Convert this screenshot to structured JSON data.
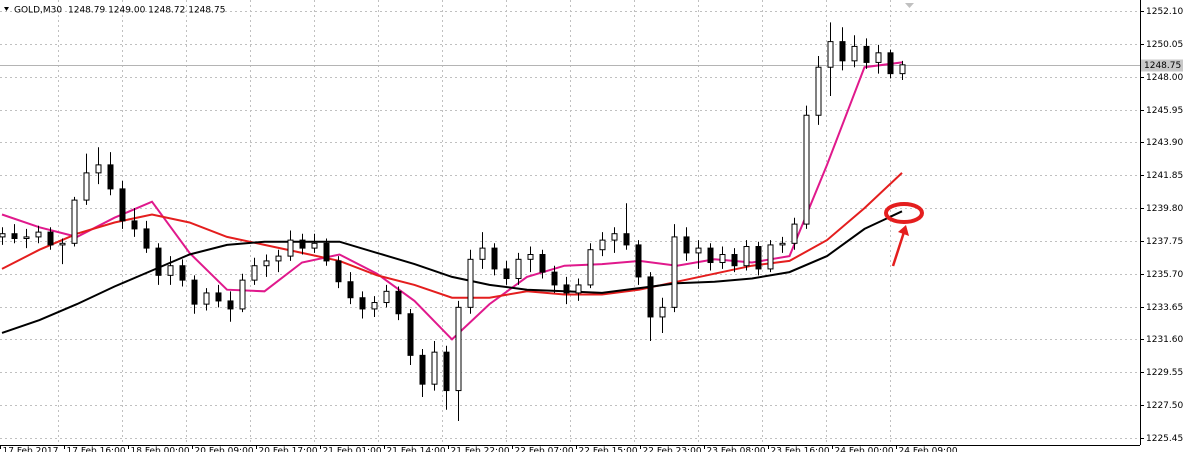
{
  "chart_data": {
    "type": "candlestick",
    "title": "GOLD,M30",
    "quote": "1248.79 1249.00 1248.72 1248.75",
    "ylim": [
      1225.0,
      1252.8
    ],
    "yticks": [
      {
        "value": 1252.1,
        "label": "1252.10"
      },
      {
        "value": 1250.05,
        "label": "1250.05"
      },
      {
        "value": 1248.0,
        "label": "1248.00"
      },
      {
        "value": 1245.95,
        "label": "1245.95"
      },
      {
        "value": 1243.9,
        "label": "1243.90"
      },
      {
        "value": 1241.85,
        "label": "1241.85"
      },
      {
        "value": 1239.8,
        "label": "1239.80"
      },
      {
        "value": 1237.75,
        "label": "1237.75"
      },
      {
        "value": 1235.7,
        "label": "1235.70"
      },
      {
        "value": 1233.65,
        "label": "1233.65"
      },
      {
        "value": 1231.6,
        "label": "1231.60"
      },
      {
        "value": 1229.55,
        "label": "1229.55"
      },
      {
        "value": 1227.5,
        "label": "1227.50"
      },
      {
        "value": 1225.45,
        "label": "1225.45"
      }
    ],
    "current_price": {
      "value": 1248.75,
      "label": "1248.75"
    },
    "x_labels": [
      "17 Feb 2017",
      "17 Feb 16:00",
      "18 Feb 00:00",
      "20 Feb 09:00",
      "20 Feb 17:00",
      "21 Feb 01:00",
      "21 Feb 14:00",
      "21 Feb 22:00",
      "22 Feb 07:00",
      "22 Feb 15:00",
      "22 Feb 23:00",
      "23 Feb 08:00",
      "23 Feb 16:00",
      "24 Feb 00:00",
      "24 Feb 09:00"
    ],
    "grid": true,
    "candles": [
      [
        1238.0,
        1238.6,
        1237.5,
        1238.2
      ],
      [
        1238.2,
        1238.8,
        1237.6,
        1237.9
      ],
      [
        1237.9,
        1238.5,
        1237.3,
        1238.0
      ],
      [
        1238.0,
        1238.7,
        1237.6,
        1238.3
      ],
      [
        1238.3,
        1238.6,
        1237.2,
        1237.5
      ],
      [
        1237.5,
        1237.9,
        1236.3,
        1237.6
      ],
      [
        1237.6,
        1240.5,
        1237.4,
        1240.3
      ],
      [
        1240.3,
        1243.2,
        1240.0,
        1242.0
      ],
      [
        1242.0,
        1243.6,
        1241.3,
        1242.5
      ],
      [
        1242.5,
        1243.3,
        1240.6,
        1241.0
      ],
      [
        1241.0,
        1241.5,
        1238.5,
        1239.0
      ],
      [
        1239.0,
        1239.8,
        1238.0,
        1238.5
      ],
      [
        1238.5,
        1239.0,
        1237.0,
        1237.3
      ],
      [
        1237.3,
        1237.6,
        1235.0,
        1235.6
      ],
      [
        1235.6,
        1236.8,
        1235.0,
        1236.2
      ],
      [
        1236.2,
        1236.6,
        1234.9,
        1235.3
      ],
      [
        1235.3,
        1235.6,
        1233.2,
        1233.8
      ],
      [
        1233.8,
        1234.8,
        1233.4,
        1234.5
      ],
      [
        1234.5,
        1235.0,
        1233.6,
        1234.0
      ],
      [
        1234.0,
        1234.6,
        1232.7,
        1233.5
      ],
      [
        1233.5,
        1235.7,
        1233.3,
        1235.3
      ],
      [
        1235.3,
        1236.7,
        1235.0,
        1236.2
      ],
      [
        1236.2,
        1236.9,
        1235.5,
        1236.5
      ],
      [
        1236.5,
        1237.2,
        1235.8,
        1236.8
      ],
      [
        1236.8,
        1238.4,
        1236.5,
        1237.8
      ],
      [
        1237.8,
        1238.2,
        1236.9,
        1237.3
      ],
      [
        1237.3,
        1238.2,
        1237.0,
        1237.6
      ],
      [
        1237.6,
        1237.9,
        1236.2,
        1236.5
      ],
      [
        1236.5,
        1236.8,
        1234.8,
        1235.2
      ],
      [
        1235.2,
        1235.8,
        1233.8,
        1234.2
      ],
      [
        1234.2,
        1234.6,
        1232.9,
        1233.5
      ],
      [
        1233.5,
        1234.3,
        1233.0,
        1233.9
      ],
      [
        1233.9,
        1235.0,
        1233.6,
        1234.6
      ],
      [
        1234.6,
        1234.9,
        1232.8,
        1233.2
      ],
      [
        1233.2,
        1233.5,
        1230.0,
        1230.6
      ],
      [
        1230.6,
        1231.0,
        1228.0,
        1228.8
      ],
      [
        1228.8,
        1231.5,
        1228.4,
        1230.8
      ],
      [
        1230.8,
        1231.2,
        1227.2,
        1228.4
      ],
      [
        1228.4,
        1234.0,
        1226.5,
        1233.6
      ],
      [
        1233.6,
        1237.2,
        1233.2,
        1236.6
      ],
      [
        1236.6,
        1238.3,
        1236.0,
        1237.3
      ],
      [
        1237.3,
        1237.6,
        1235.6,
        1236.0
      ],
      [
        1236.0,
        1236.5,
        1235.0,
        1235.4
      ],
      [
        1235.4,
        1237.0,
        1235.0,
        1236.6
      ],
      [
        1236.6,
        1237.4,
        1235.8,
        1236.9
      ],
      [
        1236.9,
        1237.2,
        1235.4,
        1235.8
      ],
      [
        1235.8,
        1236.2,
        1234.5,
        1235.0
      ],
      [
        1235.0,
        1235.5,
        1233.8,
        1234.5
      ],
      [
        1234.5,
        1235.4,
        1234.0,
        1235.0
      ],
      [
        1235.0,
        1237.6,
        1234.8,
        1237.2
      ],
      [
        1237.2,
        1238.3,
        1236.8,
        1237.8
      ],
      [
        1237.8,
        1238.6,
        1237.0,
        1238.2
      ],
      [
        1238.2,
        1240.1,
        1237.2,
        1237.5
      ],
      [
        1237.5,
        1237.8,
        1235.0,
        1235.5
      ],
      [
        1235.5,
        1235.8,
        1231.5,
        1233.0
      ],
      [
        1233.0,
        1234.2,
        1232.0,
        1233.6
      ],
      [
        1233.6,
        1238.8,
        1233.3,
        1238.0
      ],
      [
        1238.0,
        1238.6,
        1236.5,
        1237.0
      ],
      [
        1237.0,
        1237.8,
        1236.0,
        1237.3
      ],
      [
        1237.3,
        1237.6,
        1235.9,
        1236.4
      ],
      [
        1236.4,
        1237.4,
        1236.0,
        1236.9
      ],
      [
        1236.9,
        1237.3,
        1235.8,
        1236.2
      ],
      [
        1236.2,
        1237.8,
        1235.9,
        1237.4
      ],
      [
        1237.4,
        1237.7,
        1235.6,
        1236.0
      ],
      [
        1236.0,
        1237.8,
        1235.8,
        1237.5
      ],
      [
        1237.5,
        1238.0,
        1237.0,
        1237.6
      ],
      [
        1237.6,
        1239.2,
        1237.2,
        1238.8
      ],
      [
        1238.8,
        1246.2,
        1238.5,
        1245.6
      ],
      [
        1245.6,
        1249.3,
        1245.0,
        1248.6
      ],
      [
        1248.6,
        1251.4,
        1246.8,
        1250.2
      ],
      [
        1250.2,
        1251.1,
        1248.4,
        1249.0
      ],
      [
        1249.0,
        1250.6,
        1248.6,
        1249.9
      ],
      [
        1249.9,
        1250.4,
        1248.5,
        1248.9
      ],
      [
        1248.9,
        1250.0,
        1248.2,
        1249.5
      ],
      [
        1249.5,
        1249.7,
        1247.9,
        1248.2
      ],
      [
        1248.2,
        1249.0,
        1247.8,
        1248.75
      ]
    ],
    "series": [
      {
        "color": "#e0198c",
        "values": [
          1239.4,
          1238.6,
          1238.0,
          1239.2,
          1240.2,
          1237.0,
          1234.7,
          1234.6,
          1236.4,
          1236.9,
          1235.7,
          1234.0,
          1231.6,
          1233.8,
          1235.5,
          1236.2,
          1236.3,
          1236.5,
          1236.2,
          1236.6,
          1236.4,
          1236.8,
          1242.5,
          1248.6,
          1248.9
        ]
      },
      {
        "color": "#e41e1e",
        "values": [
          1236.0,
          1237.2,
          1238.2,
          1238.9,
          1239.4,
          1238.9,
          1238.0,
          1237.5,
          1237.0,
          1236.5,
          1235.6,
          1235.0,
          1234.2,
          1234.2,
          1234.6,
          1234.4,
          1234.4,
          1234.7,
          1235.2,
          1235.7,
          1236.2,
          1236.5,
          1237.8,
          1239.8,
          1242.0
        ]
      },
      {
        "color": "#000000",
        "values": [
          1232.0,
          1232.8,
          1233.8,
          1234.9,
          1235.9,
          1236.9,
          1237.5,
          1237.7,
          1237.7,
          1237.7,
          1237.0,
          1236.3,
          1235.5,
          1235.0,
          1234.7,
          1234.6,
          1234.5,
          1234.8,
          1235.1,
          1235.2,
          1235.4,
          1235.8,
          1236.8,
          1238.5,
          1239.6
        ]
      }
    ]
  }
}
